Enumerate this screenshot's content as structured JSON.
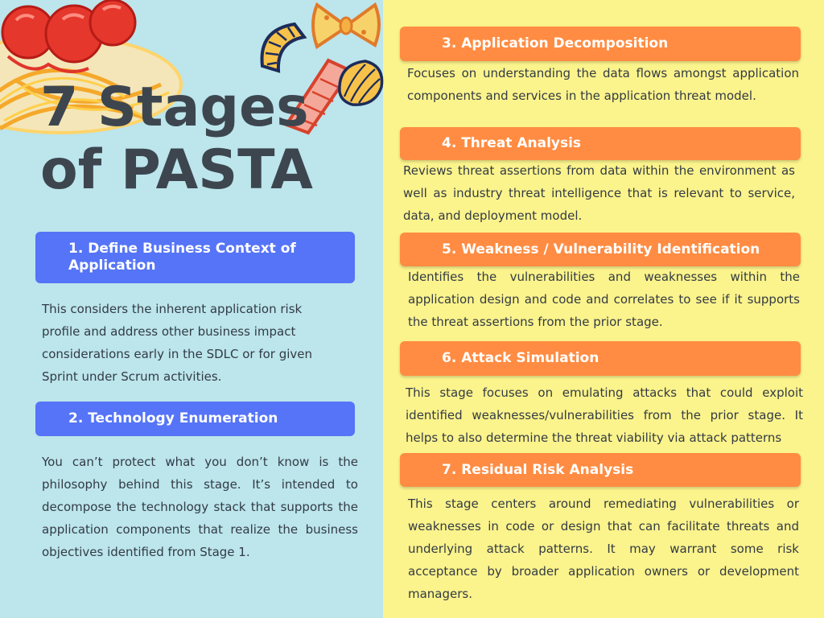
{
  "title": {
    "line1": "7 Stages",
    "line2": "of PASTA"
  },
  "stages": [
    {
      "heading": "1. Define Business Context of Application",
      "body": "This considers the inherent application risk profile and address other business impact considerations early in the SDLC or for given Sprint under Scrum activities."
    },
    {
      "heading": "2. Technology Enumeration",
      "body": "You can’t protect what you don’t know is the philosophy behind this stage. It’s intended to decompose the technology stack that supports the application components that realize the business objectives identified from Stage 1."
    },
    {
      "heading": "3. Application Decomposition",
      "body": "Focuses on understanding the data flows amongst application components and services in the application threat model."
    },
    {
      "heading": "4. Threat Analysis",
      "body": "Reviews threat assertions from data within the environment as well as industry threat intelligence that is relevant to service, data, and deployment model."
    },
    {
      "heading": "5. Weakness / Vulnerability Identification",
      "body": "Identifies the vulnerabilities and weaknesses within the application design and code and correlates to see if it supports the threat assertions from the prior stage."
    },
    {
      "heading": "6. Attack Simulation",
      "body": "This stage focuses on emulating attacks that could exploit identified weaknesses/vulnerabilities from the prior stage. It helps to also determine the threat viability via attack patterns"
    },
    {
      "heading": "7. Residual Risk Analysis",
      "body": "This stage centers around remediating vulnerabilities or weaknesses in code or design that can facilitate threats and underlying attack patterns. It may warrant some risk acceptance by broader application owners or development managers."
    }
  ],
  "colors": {
    "left_background": "#bce5ec",
    "right_background": "#fbf38c",
    "left_heading_bar": "#5574f7",
    "right_heading_bar": "#ff8c42",
    "title_text": "#3d464f"
  },
  "icons": [
    "spaghetti-meatballs-icon",
    "macaroni-icon",
    "farfalle-icon",
    "penne-icon",
    "shell-pasta-icon"
  ]
}
